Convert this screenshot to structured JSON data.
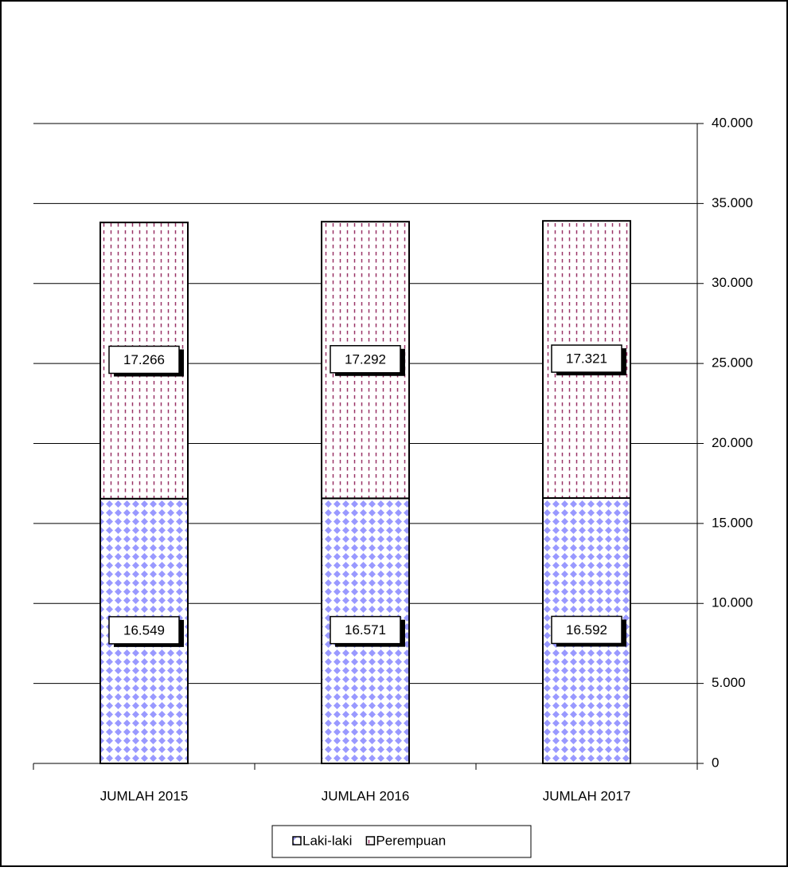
{
  "chart_data": {
    "type": "stacked_bar",
    "categories": [
      "JUMLAH 2015",
      "JUMLAH 2016",
      "JUMLAH 2017"
    ],
    "series": [
      {
        "name": "Laki-laki",
        "color": "#9999ff",
        "values": [
          16549,
          16571,
          16592
        ],
        "value_labels": [
          "16.549",
          "16.571",
          "16.592"
        ]
      },
      {
        "name": "Perempuan",
        "color": "#993366",
        "values": [
          17266,
          17292,
          17321
        ],
        "value_labels": [
          "17.266",
          "17.292",
          "17.321"
        ]
      }
    ],
    "ylim": [
      0,
      40000
    ],
    "yticks": [
      {
        "value": 0,
        "label": "0"
      },
      {
        "value": 5000,
        "label": "5.000"
      },
      {
        "value": 10000,
        "label": "10.000"
      },
      {
        "value": 15000,
        "label": "15.000"
      },
      {
        "value": 20000,
        "label": "20.000"
      },
      {
        "value": 25000,
        "label": "25.000"
      },
      {
        "value": 30000,
        "label": "30.000"
      },
      {
        "value": 35000,
        "label": "35.000"
      },
      {
        "value": 40000,
        "label": "40.000"
      }
    ],
    "grid": true,
    "y_axis_side": "right",
    "legend": "bottom"
  }
}
